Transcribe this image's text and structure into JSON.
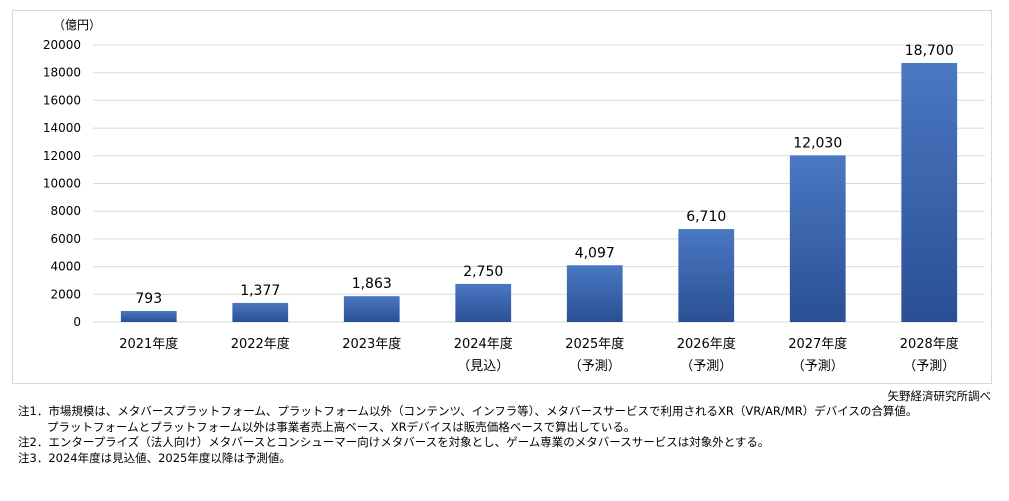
{
  "chart_data": {
    "type": "bar",
    "unit_label": "（億円）",
    "categories": [
      [
        "2021年度",
        ""
      ],
      [
        "2022年度",
        ""
      ],
      [
        "2023年度",
        ""
      ],
      [
        "2024年度",
        "（見込）"
      ],
      [
        "2025年度",
        "（予測）"
      ],
      [
        "2026年度",
        "（予測）"
      ],
      [
        "2027年度",
        "（予測）"
      ],
      [
        "2028年度",
        "（予測）"
      ]
    ],
    "values": [
      793,
      1377,
      1863,
      2750,
      4097,
      6710,
      12030,
      18700
    ],
    "value_labels": [
      "793",
      "1,377",
      "1,863",
      "2,750",
      "4,097",
      "6,710",
      "12,030",
      "18,700"
    ],
    "y_ticks": [
      "0",
      "2000",
      "4000",
      "6000",
      "8000",
      "10000",
      "12000",
      "14000",
      "16000",
      "18000",
      "20000"
    ],
    "ylim": [
      0,
      20000
    ],
    "grid": true,
    "bar_color_top": "#4a78c2",
    "bar_color_bottom": "#2a4f94",
    "grid_color": "#d9d9d9"
  },
  "source": "矢野経済研究所調べ",
  "notes": {
    "note1_line1": "注1．市場規模は、メタバースプラットフォーム、プラットフォーム以外（コンテンツ、インフラ等）、メタバースサービスで利用されるXR（VR/AR/MR）デバイスの合算値。",
    "note1_line2": "プラットフォームとプラットフォーム以外は事業者売上高ベース、XRデバイスは販売価格ベースで算出している。",
    "note2": "注2．エンタープライズ（法人向け）メタバースとコンシューマー向けメタバースを対象とし、ゲーム専業のメタバースサービスは対象外とする。",
    "note3": "注3．2024年度は見込値、2025年度以降は予測値。"
  }
}
